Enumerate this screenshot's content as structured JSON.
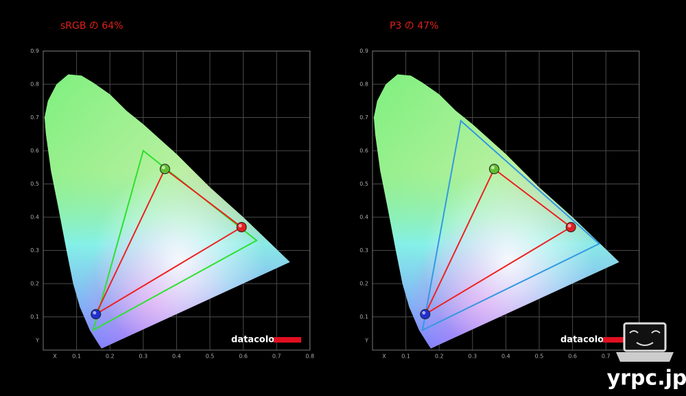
{
  "chart_data": [
    {
      "type": "gamut",
      "title": "sRGB の 64%",
      "xlabel": "X",
      "ylabel": "Y",
      "logo": "datacolor",
      "xlim": [
        0,
        0.8
      ],
      "ylim": [
        0,
        0.9
      ],
      "xticks": [
        0.1,
        0.2,
        0.3,
        0.4,
        0.5,
        0.6,
        0.7,
        0.8
      ],
      "yticks": [
        0.1,
        0.2,
        0.3,
        0.4,
        0.5,
        0.6,
        0.7,
        0.8,
        0.9
      ],
      "grid": true,
      "series": [
        {
          "color": "#2ee02e",
          "x": [
            0.64,
            0.3,
            0.15
          ],
          "y": [
            0.33,
            0.6,
            0.06
          ]
        },
        {
          "color": "#ee2020",
          "x": [
            0.595,
            0.365,
            0.158
          ],
          "y": [
            0.37,
            0.545,
            0.108
          ],
          "marker_colors": [
            "#e02020",
            "#60c030",
            "#2030d0"
          ]
        }
      ]
    },
    {
      "type": "gamut",
      "title": "P3 の 47%",
      "xlabel": "X",
      "ylabel": "Y",
      "logo": "datacolor",
      "xlim": [
        0,
        0.8
      ],
      "ylim": [
        0,
        0.9
      ],
      "xticks": [
        0.1,
        0.2,
        0.3,
        0.4,
        0.5,
        0.6,
        0.7
      ],
      "yticks": [
        0.1,
        0.2,
        0.3,
        0.4,
        0.5,
        0.6,
        0.7,
        0.8,
        0.9
      ],
      "grid": true,
      "series": [
        {
          "color": "#3399e0",
          "x": [
            0.68,
            0.265,
            0.15
          ],
          "y": [
            0.32,
            0.69,
            0.06
          ]
        },
        {
          "color": "#ee2020",
          "x": [
            0.595,
            0.365,
            0.158
          ],
          "y": [
            0.37,
            0.545,
            0.108
          ],
          "marker_colors": [
            "#e02020",
            "#60c030",
            "#2030d0"
          ]
        }
      ]
    }
  ],
  "watermark": "yrpc.jp"
}
